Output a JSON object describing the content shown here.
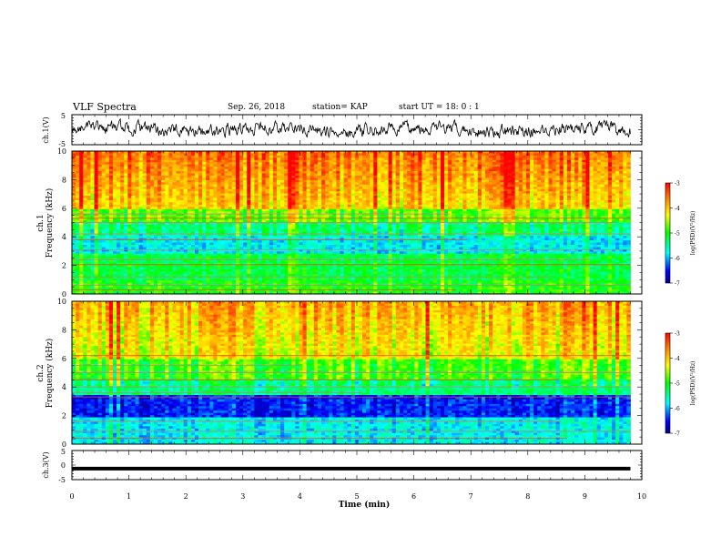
{
  "header": {
    "title": "VLF Spectra",
    "date": "Sep. 26, 2018",
    "station": "station= KAP",
    "start": "start  UT  =   18: 0   : 1"
  },
  "chart_data": [
    {
      "type": "line",
      "name": "waveform-ch1",
      "ylabel": "ch.1(V)",
      "ylim": [
        -5,
        5
      ],
      "yticks": [
        "5",
        "-5"
      ],
      "xlim": [
        0,
        10
      ]
    },
    {
      "type": "heatmap",
      "name": "spectrogram-ch1",
      "ylabel": "ch.1\nFrequency (kHz)",
      "ylabel_line1": "ch.1",
      "ylabel_line2": "Frequency  (kHz)",
      "ylim": [
        0,
        10
      ],
      "yticks": [
        "0",
        "2",
        "4",
        "6",
        "8",
        "10"
      ],
      "xlim": [
        0,
        9.8
      ],
      "colorbar": {
        "label": "log(PSD)(V²/Hz)",
        "range": [
          -7,
          -3
        ],
        "ticks": [
          "-3",
          "-4",
          "-5",
          "-6",
          "-7"
        ]
      }
    },
    {
      "type": "heatmap",
      "name": "spectrogram-ch2",
      "ylabel_line1": "ch.2",
      "ylabel_line2": "Frequency  (kHz)",
      "ylim": [
        0,
        10
      ],
      "yticks": [
        "0",
        "2",
        "4",
        "6",
        "8",
        "10"
      ],
      "xlim": [
        0,
        9.8
      ],
      "colorbar": {
        "label": "log(PSD)(V²/Hz)",
        "range": [
          -7,
          -3
        ],
        "ticks": [
          "-3",
          "-4",
          "-5",
          "-6",
          "-7"
        ]
      }
    },
    {
      "type": "line",
      "name": "waveform-ch3",
      "ylabel": "ch.3(V)",
      "ylim": [
        -5,
        5
      ],
      "yticks": [
        "5",
        "0",
        "-5"
      ],
      "level": -1.2,
      "xlim": [
        0,
        10
      ]
    }
  ],
  "xaxis": {
    "label": "Time  (min)",
    "ticks": [
      "0",
      "1",
      "2",
      "3",
      "4",
      "5",
      "6",
      "7",
      "8",
      "9",
      "10"
    ],
    "range": [
      0,
      10
    ]
  },
  "colorbar_label": "log(PSD)(V²/Hz)"
}
